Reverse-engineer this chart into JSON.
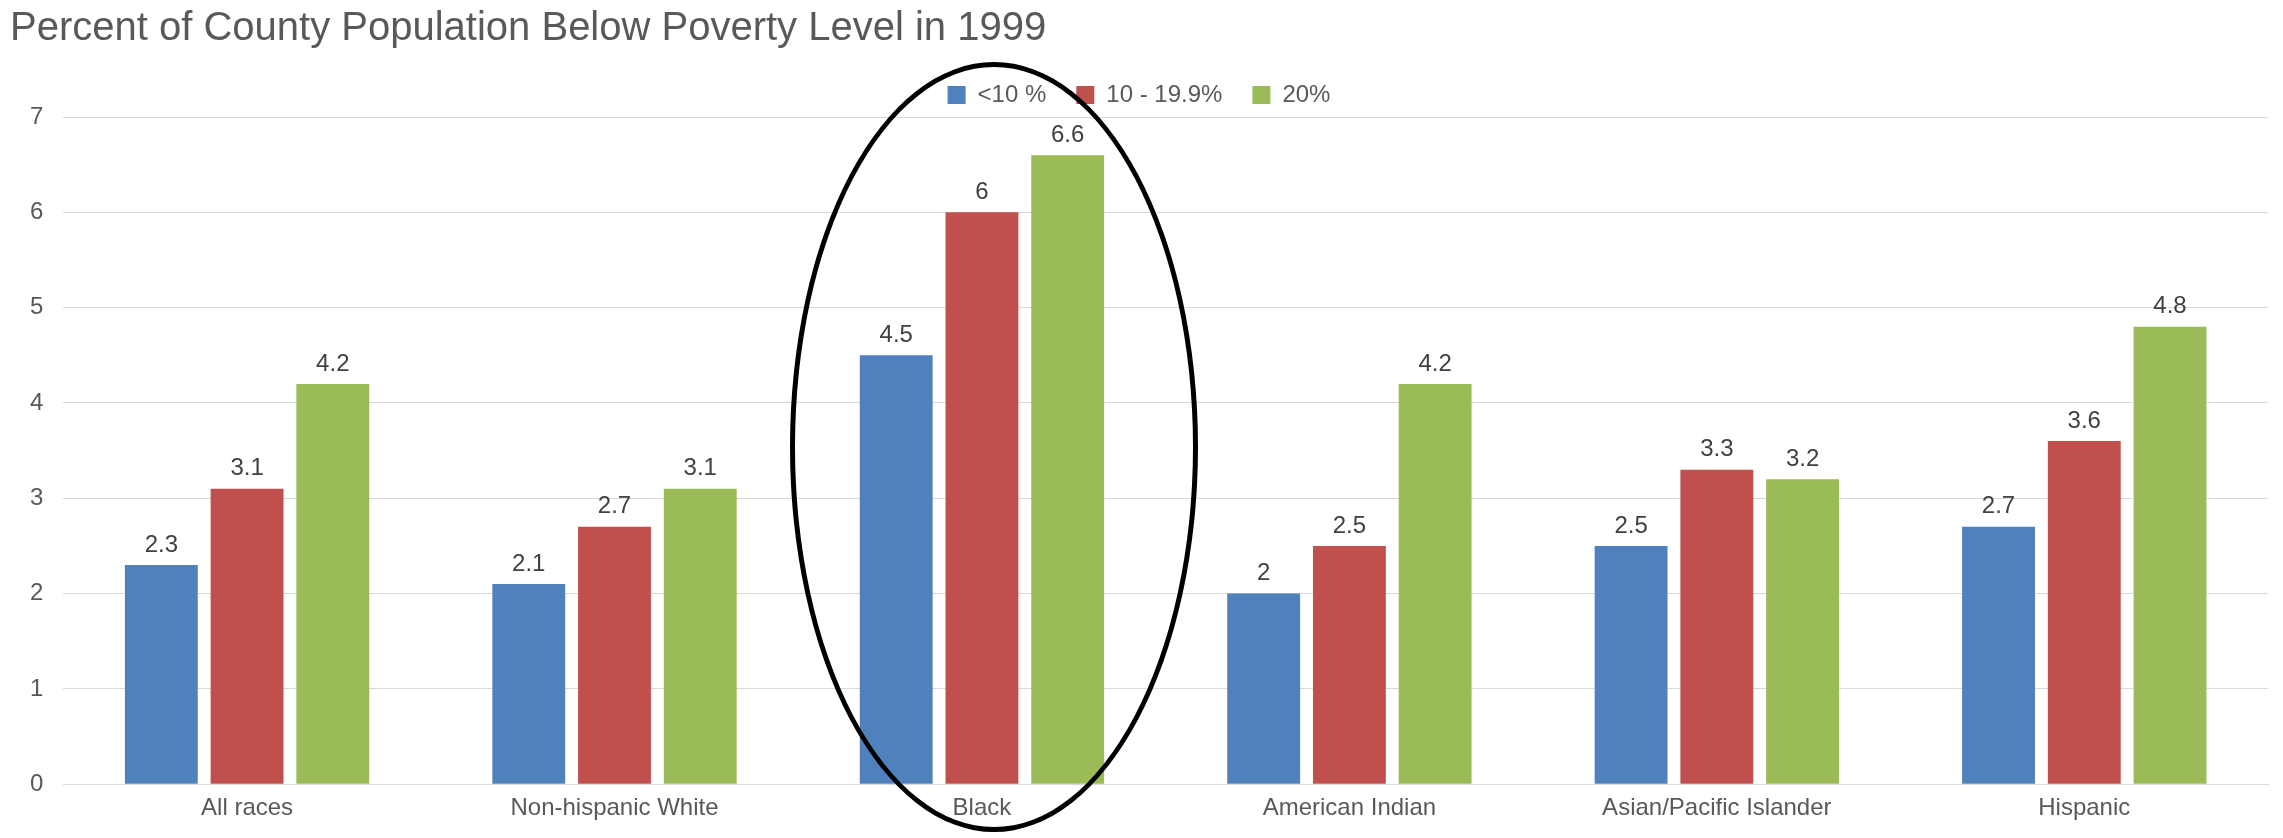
{
  "chart_data": {
    "type": "bar",
    "title": "Percent of County Population Below Poverty Level in 1999",
    "categories": [
      "All races",
      "Non-hispanic White",
      "Black",
      "American Indian",
      "Asian/Pacific Islander",
      "Hispanic"
    ],
    "series": [
      {
        "name": "<10 %",
        "color": "#4f81bd",
        "values": [
          2.3,
          2.1,
          4.5,
          2,
          2.5,
          2.7
        ]
      },
      {
        "name": "10 - 19.9%",
        "color": "#c0504d",
        "values": [
          3.1,
          2.7,
          6,
          2.5,
          3.3,
          3.6
        ]
      },
      {
        "name": "20%",
        "color": "#9bbb59",
        "values": [
          4.2,
          3.1,
          6.6,
          4.2,
          3.2,
          4.8
        ]
      }
    ],
    "ylim": [
      0,
      7
    ],
    "yticks": [
      0,
      1,
      2,
      3,
      4,
      5,
      6,
      7
    ],
    "grid": "y",
    "legend": "top",
    "data_labels": true
  }
}
